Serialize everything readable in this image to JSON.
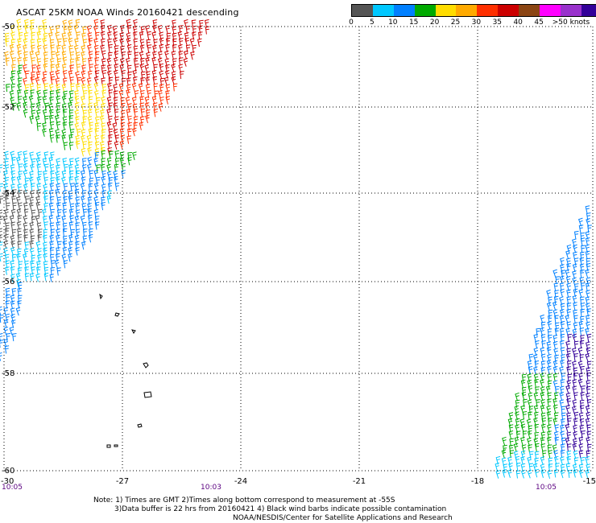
{
  "title": "ASCAT 25KM NOAA Winds 20160421 descending",
  "legend": {
    "colors": [
      "#555555",
      "#00c8ff",
      "#0080ff",
      "#00aa00",
      "#ffdd00",
      "#ffaa00",
      "#ff3000",
      "#cc0000",
      "#8b4513",
      "#ff00ff",
      "#9932cc",
      "#330099"
    ],
    "labels": [
      "0",
      "5",
      "10",
      "15",
      "20",
      "25",
      "30",
      "35",
      "40",
      "45",
      ">50 knots"
    ]
  },
  "map": {
    "lat_labels": [
      "-50",
      "-52",
      "-54",
      "-56",
      "-58",
      "-60"
    ],
    "lon_labels": [
      "-30",
      "-27",
      "-24",
      "-21",
      "-18",
      "-15"
    ],
    "time_labels": [
      "10:05",
      "10:03",
      "10:05"
    ]
  },
  "notes": {
    "line1": "Note: 1) Times are GMT 2)Times along bottom correspond to measurement at -55S",
    "line2": "3)Data buffer is 22 hrs from 20160421 4) Black wind barbs indicate possible contamination",
    "line3": "NOAA/NESDIS/Center for Satellite Applications and Research"
  }
}
